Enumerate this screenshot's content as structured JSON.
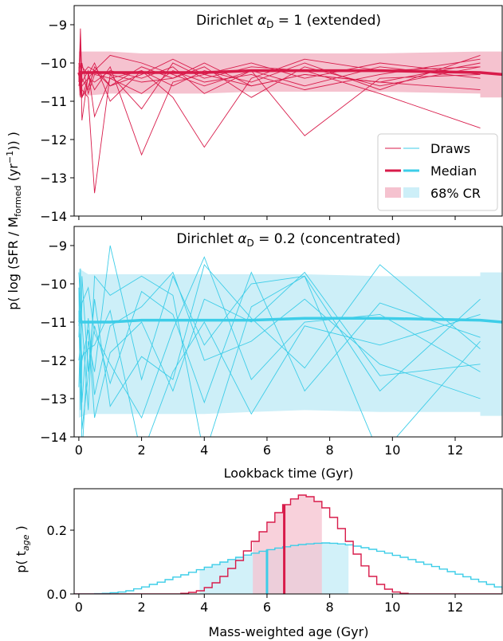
{
  "colors": {
    "red": "#d81b4a",
    "red_fill": "#f5c2cf",
    "cyan": "#3dcde8",
    "cyan_fill": "#cdeff8",
    "overlap_fill": "#d4c9dc",
    "frame": "#000000"
  },
  "shared_ylabel": "p( log (SFR / M",
  "shared_ylabel_sub": "formed",
  "shared_ylabel_tail": " (yr",
  "shared_ylabel_sup": "−1",
  "shared_ylabel_end": ")) )",
  "chart_data": [
    {
      "type": "line",
      "panel": "top",
      "title_pre": "Dirichlet ",
      "title_alpha": "α",
      "title_sub": "D",
      "title_post": " = 1 (extended)",
      "xlim": [
        -0.15,
        13.5
      ],
      "ylim": [
        -14,
        -8.5
      ],
      "yticks": [
        -9,
        -10,
        -11,
        -12,
        -13,
        -14
      ],
      "ytick_labels": [
        "−9",
        "−10",
        "−11",
        "−12",
        "−13",
        "−14"
      ],
      "xticks": [
        0,
        2,
        4,
        6,
        8,
        10,
        12
      ],
      "xtick_labels_shown": false,
      "color": "red",
      "median": {
        "x": [
          0,
          0.02,
          0.05,
          0.1,
          0.3,
          0.5,
          1,
          2,
          3,
          4,
          5.5,
          7.2,
          9.6,
          12.8,
          13.5
        ],
        "y": [
          -10.25,
          -10.3,
          -10.25,
          -10.25,
          -10.25,
          -10.25,
          -10.25,
          -10.25,
          -10.25,
          -10.25,
          -10.2,
          -10.2,
          -10.2,
          -10.25,
          -10.3
        ]
      },
      "cr68": {
        "x": [
          0,
          0.3,
          1,
          2,
          3,
          4,
          5.5,
          7.2,
          9.6,
          12.8,
          12.8,
          13.5
        ],
        "lower": [
          -10.85,
          -10.85,
          -10.8,
          -10.8,
          -10.8,
          -10.8,
          -10.75,
          -10.75,
          -10.75,
          -10.8,
          -10.9,
          -10.9
        ],
        "upper": [
          -9.7,
          -9.7,
          -9.7,
          -9.75,
          -9.75,
          -9.75,
          -9.75,
          -9.75,
          -9.75,
          -9.7,
          -9.7,
          -9.7
        ]
      },
      "draw_x": [
        0,
        0.05,
        0.1,
        0.3,
        0.5,
        1,
        2,
        3,
        4,
        5.5,
        7.2,
        9.6,
        12.8
      ],
      "draws": [
        [
          -10.3,
          -9.4,
          -10.9,
          -10.4,
          -10.2,
          -10.6,
          -10.3,
          -9.9,
          -10.3,
          -10.0,
          -10.4,
          -10.0,
          -10.3
        ],
        [
          -10.2,
          -9.6,
          -11.5,
          -10.3,
          -10.7,
          -10.1,
          -12.4,
          -10.5,
          -10.3,
          -10.6,
          -10.3,
          -10.5,
          -10.7
        ],
        [
          -10.5,
          -9.1,
          -10.5,
          -10.2,
          -11.4,
          -10.4,
          -10.2,
          -10.9,
          -12.2,
          -10.4,
          -9.9,
          -10.2,
          -10.1
        ],
        [
          -10.1,
          -10.7,
          -10.0,
          -10.8,
          -10.3,
          -10.4,
          -10.8,
          -10.2,
          -10.5,
          -10.3,
          -10.7,
          -10.3,
          -9.9
        ],
        [
          -10.4,
          -10.2,
          -10.7,
          -10.9,
          -13.4,
          -10.3,
          -10.5,
          -10.4,
          -10.1,
          -10.9,
          -10.1,
          -10.6,
          -10.1
        ],
        [
          -10.3,
          -10.9,
          -10.3,
          -10.1,
          -10.2,
          -9.8,
          -10.0,
          -10.3,
          -10.6,
          -10.2,
          -11.9,
          -10.4,
          -10.3
        ],
        [
          -10.0,
          -10.5,
          -10.9,
          -10.6,
          -10.2,
          -10.3,
          -11.2,
          -10.0,
          -10.4,
          -10.1,
          -10.2,
          -10.8,
          -11.7
        ],
        [
          -10.6,
          -10.3,
          -10.1,
          -10.3,
          -10.0,
          -11.0,
          -10.2,
          -10.6,
          -10.2,
          -10.5,
          -10.0,
          -10.7,
          -9.8
        ],
        [
          -10.2,
          -10.8,
          -10.6,
          -10.4,
          -10.5,
          -10.2,
          -10.4,
          -10.1,
          -10.8,
          -10.2,
          -10.6,
          -10.1,
          -10.4
        ],
        [
          -10.4,
          -10.0,
          -10.4,
          -10.7,
          -10.1,
          -10.6,
          -10.1,
          -10.4,
          -10.0,
          -10.6,
          -10.3,
          -10.5,
          -10.0
        ]
      ],
      "legend": {
        "placement": "lower-right",
        "entries": [
          "Draws",
          "Median",
          "68% CR"
        ]
      }
    },
    {
      "type": "line",
      "panel": "middle",
      "title_pre": "Dirichlet ",
      "title_alpha": "α",
      "title_sub": "D",
      "title_post": " = 0.2 (concentrated)",
      "xlim": [
        -0.15,
        13.5
      ],
      "ylim": [
        -14,
        -8.5
      ],
      "yticks": [
        -9,
        -10,
        -11,
        -12,
        -13,
        -14
      ],
      "ytick_labels": [
        "−9",
        "−10",
        "−11",
        "−12",
        "−13",
        "−14"
      ],
      "xticks": [
        0,
        2,
        4,
        6,
        8,
        10,
        12
      ],
      "xtick_labels": [
        "0",
        "2",
        "4",
        "6",
        "8",
        "10",
        "12"
      ],
      "xlabel": "Lookback time (Gyr)",
      "color": "cyan",
      "median": {
        "x": [
          0,
          0.02,
          0.05,
          0.1,
          0.3,
          0.5,
          1,
          2,
          3,
          4,
          5.5,
          7.2,
          9.6,
          12.8,
          13.5
        ],
        "y": [
          -11.0,
          -11.0,
          -10.95,
          -11.0,
          -11.0,
          -11.0,
          -11.0,
          -10.95,
          -10.95,
          -10.95,
          -10.95,
          -10.9,
          -10.9,
          -10.95,
          -11.0
        ]
      },
      "cr68": {
        "x": [
          0,
          0.3,
          1,
          2,
          3,
          4,
          5.5,
          7.2,
          9.6,
          12.8,
          12.8,
          13.5
        ],
        "lower": [
          -13.5,
          -13.4,
          -13.4,
          -13.4,
          -13.4,
          -13.4,
          -13.35,
          -13.3,
          -13.35,
          -13.35,
          -13.45,
          -13.45
        ],
        "upper": [
          -9.6,
          -9.75,
          -9.75,
          -9.75,
          -9.75,
          -9.75,
          -9.75,
          -9.75,
          -9.8,
          -9.8,
          -9.7,
          -9.7
        ]
      },
      "draw_x": [
        0,
        0.05,
        0.1,
        0.3,
        0.5,
        1,
        2,
        3,
        4,
        5.5,
        7.2,
        9.6,
        12.8
      ],
      "draws": [
        [
          -11.0,
          -9.6,
          -14.5,
          -11.5,
          -12.3,
          -9.0,
          -12.5,
          -9.8,
          -11.6,
          -10.0,
          -9.8,
          -12.8,
          -10.4
        ],
        [
          -9.7,
          -10.4,
          -11.0,
          -13.3,
          -9.8,
          -10.3,
          -9.8,
          -10.3,
          -14.5,
          -10.6,
          -9.8,
          -14.5,
          -11.5
        ],
        [
          -12.0,
          -11.6,
          -10.5,
          -10.1,
          -11.3,
          -12.1,
          -13.5,
          -11.2,
          -9.3,
          -12.5,
          -11.0,
          -10.8,
          -12.3
        ],
        [
          -10.7,
          -12.6,
          -9.8,
          -12.3,
          -10.4,
          -13.2,
          -11.9,
          -12.5,
          -9.5,
          -10.9,
          -12.2,
          -9.5,
          -11.7
        ],
        [
          -11.4,
          -10.2,
          -13.1,
          -10.9,
          -12.9,
          -11.1,
          -10.6,
          -9.7,
          -12.0,
          -11.5,
          -10.4,
          -12.1,
          -13.0
        ],
        [
          -10.1,
          -13.3,
          -11.9,
          -11.7,
          -11.6,
          -10.7,
          -14.5,
          -12.3,
          -11.0,
          -13.4,
          -11.1,
          -11.6,
          -10.8
        ],
        [
          -12.7,
          -11.3,
          -12.0,
          -11.2,
          -13.5,
          -11.8,
          -11.0,
          -12.8,
          -10.4,
          -11.0,
          -9.7,
          -12.4,
          -12.1
        ],
        [
          -11.1,
          -10.7,
          -13.8,
          -12.4,
          -11.1,
          -12.6,
          -10.2,
          -10.8,
          -13.1,
          -9.7,
          -12.8,
          -10.5,
          -11.4
        ]
      ]
    },
    {
      "type": "area",
      "panel": "bottom",
      "ylabel_pre": "p( t",
      "ylabel_sub": "age",
      "ylabel_post": " )",
      "xlabel": "Mass-weighted age (Gyr)",
      "xlim": [
        -0.15,
        13.5
      ],
      "ylim": [
        0,
        0.33
      ],
      "xticks": [
        0,
        2,
        4,
        6,
        8,
        10,
        12
      ],
      "xtick_labels": [
        "0",
        "2",
        "4",
        "6",
        "8",
        "10",
        "12"
      ],
      "yticks": [
        0.0,
        0.2
      ],
      "ytick_labels": [
        "0.0",
        "0.2"
      ],
      "bin_width": 0.25,
      "series": [
        {
          "color": "cyan",
          "start": 0.5,
          "values": [
            0.001,
            0.002,
            0.004,
            0.006,
            0.01,
            0.016,
            0.022,
            0.03,
            0.037,
            0.045,
            0.053,
            0.06,
            0.068,
            0.076,
            0.084,
            0.092,
            0.1,
            0.108,
            0.115,
            0.122,
            0.128,
            0.134,
            0.139,
            0.144,
            0.148,
            0.152,
            0.155,
            0.157,
            0.159,
            0.16,
            0.159,
            0.157,
            0.154,
            0.15,
            0.145,
            0.14,
            0.134,
            0.128,
            0.121,
            0.115,
            0.108,
            0.1,
            0.093,
            0.086,
            0.078,
            0.07,
            0.062,
            0.054,
            0.046,
            0.038,
            0.03,
            0.022,
            0.015,
            0.009,
            0.005,
            0.002,
            0.001
          ],
          "median": 6.0,
          "cr68": [
            3.85,
            8.6
          ]
        },
        {
          "color": "red",
          "start": 3.25,
          "values": [
            0.002,
            0.005,
            0.01,
            0.02,
            0.035,
            0.055,
            0.08,
            0.105,
            0.135,
            0.165,
            0.195,
            0.225,
            0.255,
            0.28,
            0.298,
            0.31,
            0.305,
            0.29,
            0.27,
            0.24,
            0.205,
            0.165,
            0.125,
            0.088,
            0.055,
            0.03,
            0.015,
            0.006,
            0.002
          ],
          "median": 6.55,
          "cr68": [
            5.55,
            7.75
          ]
        }
      ]
    }
  ]
}
